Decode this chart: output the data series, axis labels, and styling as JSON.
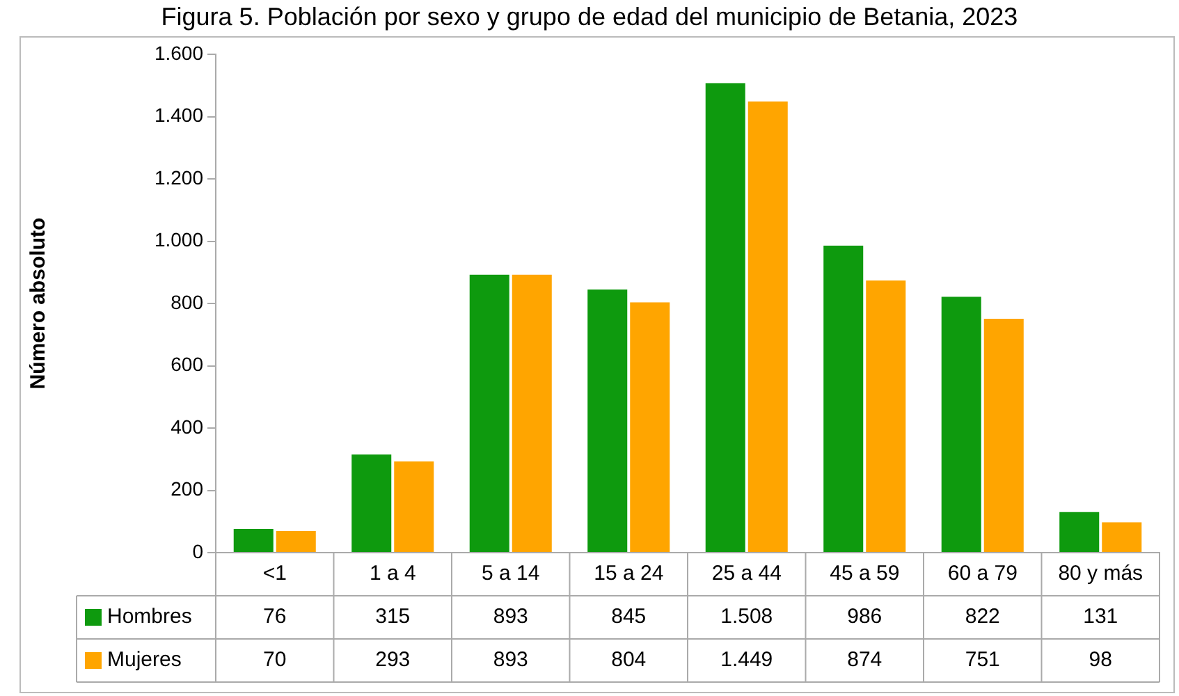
{
  "chart_data": {
    "type": "bar",
    "title": "Figura 5. Población por sexo y grupo de edad del municipio de Betania, 2023",
    "ylabel": "Número absoluto",
    "categories": [
      "<1",
      "1 a 4",
      "5 a 14",
      "15 a 24",
      "25 a 44",
      "45 a 59",
      "60 a 79",
      "80 y más"
    ],
    "series": [
      {
        "name": "Hombres",
        "color": "#0e9a0e",
        "values": [
          76,
          315,
          893,
          845,
          1508,
          986,
          822,
          131
        ],
        "value_labels": [
          "76",
          "315",
          "893",
          "845",
          "1.508",
          "986",
          "822",
          "131"
        ]
      },
      {
        "name": "Mujeres",
        "color": "#ffa500",
        "values": [
          70,
          293,
          893,
          804,
          1449,
          874,
          751,
          98
        ],
        "value_labels": [
          "70",
          "293",
          "893",
          "804",
          "1.449",
          "874",
          "751",
          "98"
        ]
      }
    ],
    "ylim": [
      0,
      1600
    ],
    "yticks": [
      {
        "value": 0,
        "label": "0"
      },
      {
        "value": 200,
        "label": "200"
      },
      {
        "value": 400,
        "label": "400"
      },
      {
        "value": 600,
        "label": "600"
      },
      {
        "value": 800,
        "label": "800"
      },
      {
        "value": 1000,
        "label": "1.000"
      },
      {
        "value": 1200,
        "label": "1.200"
      },
      {
        "value": 1400,
        "label": "1.400"
      },
      {
        "value": 1600,
        "label": "1.600"
      }
    ],
    "grid": false,
    "legend": "bottom"
  }
}
